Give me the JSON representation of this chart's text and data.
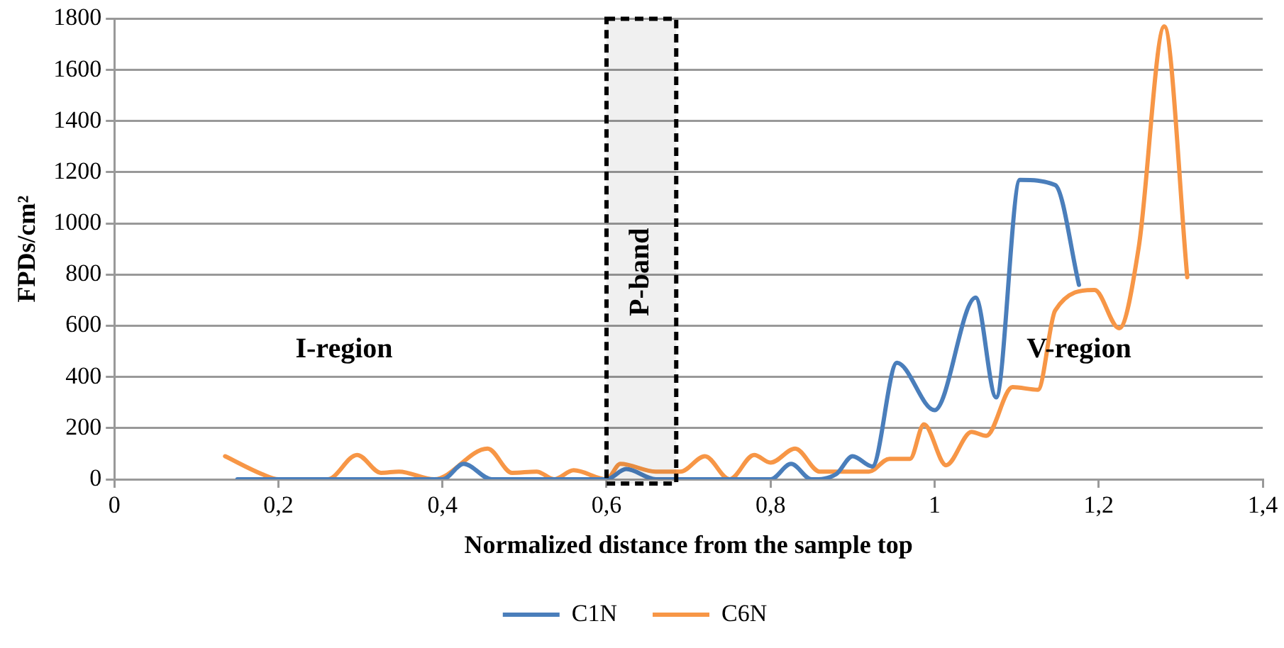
{
  "chart_data": {
    "type": "line",
    "xlabel": "Normalized distance from the sample top",
    "ylabel": "FPDs/cm²",
    "xlim": [
      0,
      1.4
    ],
    "xticks": [
      0,
      {
        "value": 0.2,
        "label": "0,2"
      },
      {
        "value": 0.4,
        "label": "0,4"
      },
      {
        "value": 0.6,
        "label": "0,6"
      },
      {
        "value": 0.8,
        "label": "0,8"
      },
      1,
      {
        "value": 1.2,
        "label": "1,2"
      },
      {
        "value": 1.4,
        "label": "1,4"
      }
    ],
    "ylim": [
      0,
      1800
    ],
    "yticks": [
      0,
      200,
      400,
      600,
      800,
      1000,
      1200,
      1400,
      1600,
      1800
    ],
    "grid": "y",
    "legend": "bottom",
    "marker": "none",
    "line_style": "solid",
    "series": [
      {
        "name": "C1N",
        "color": "#4a7ebb",
        "x": [
          0.15,
          0.2,
          0.3,
          0.4,
          0.426,
          0.46,
          0.55,
          0.6,
          0.624,
          0.66,
          0.75,
          0.8,
          0.825,
          0.85,
          0.88,
          0.9,
          0.924,
          0.954,
          1.0,
          1.05,
          1.075,
          1.104,
          1.147,
          1.176
        ],
        "values": [
          0,
          0,
          0,
          0,
          60,
          0,
          0,
          0,
          40,
          0,
          0,
          0,
          60,
          0,
          20,
          90,
          50,
          455,
          270,
          710,
          320,
          1170,
          1150,
          760
        ]
      },
      {
        "name": "C6N",
        "color": "#f79646",
        "x": [
          0.135,
          0.18,
          0.2,
          0.26,
          0.296,
          0.325,
          0.347,
          0.39,
          0.455,
          0.485,
          0.515,
          0.536,
          0.56,
          0.6,
          0.617,
          0.66,
          0.69,
          0.72,
          0.75,
          0.78,
          0.8,
          0.83,
          0.86,
          0.92,
          0.945,
          0.97,
          0.987,
          1.014,
          1.045,
          1.063,
          1.095,
          1.126,
          1.147,
          1.195,
          1.225,
          1.249,
          1.28,
          1.308
        ],
        "values": [
          90,
          20,
          0,
          0,
          95,
          25,
          30,
          0,
          120,
          25,
          30,
          0,
          35,
          0,
          60,
          30,
          30,
          90,
          0,
          95,
          65,
          120,
          30,
          30,
          80,
          80,
          215,
          55,
          185,
          170,
          360,
          350,
          660,
          740,
          590,
          910,
          1770,
          790
        ]
      }
    ],
    "bands": [
      {
        "axis": "x",
        "from": 0.6,
        "to": 0.685,
        "label": "P-band",
        "color": "#000000"
      }
    ],
    "annotations": [
      "I-region",
      "V-region"
    ]
  }
}
